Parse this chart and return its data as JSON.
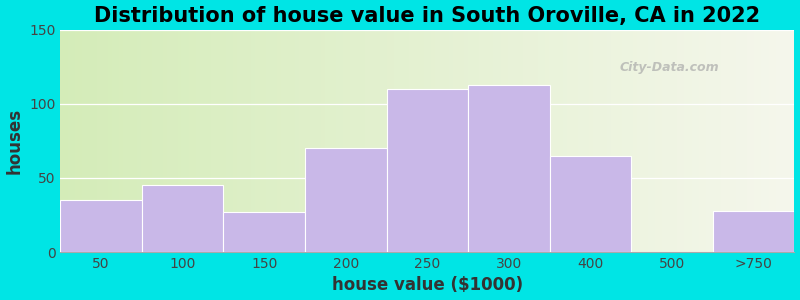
{
  "title": "Distribution of house value in South Oroville, CA in 2022",
  "xlabel": "house value ($1000)",
  "ylabel": "houses",
  "bar_labels": [
    "50",
    "100",
    "150",
    "200",
    "250",
    "300",
    "400",
    "500",
    ">750"
  ],
  "bar_values": [
    35,
    45,
    27,
    70,
    110,
    113,
    65,
    0,
    28
  ],
  "bar_color": "#c9b8e8",
  "ylim": [
    0,
    150
  ],
  "yticks": [
    0,
    50,
    100,
    150
  ],
  "background_outer": "#00e5e5",
  "title_fontsize": 15,
  "axis_label_fontsize": 12,
  "tick_fontsize": 10,
  "watermark": "City-Data.com"
}
